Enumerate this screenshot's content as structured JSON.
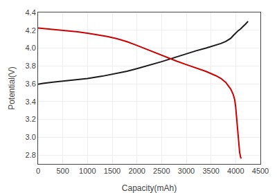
{
  "chart_data": {
    "type": "line",
    "xlabel": "Capacity(mAh)",
    "ylabel": "Potential(V)",
    "xlim": [
      0,
      4500
    ],
    "ylim": [
      2.7,
      4.4
    ],
    "xticks": [
      0,
      500,
      1000,
      1500,
      2000,
      2500,
      3000,
      3500,
      4000,
      4500
    ],
    "yticks": [
      2.8,
      {
        "value": 3.0,
        "label": "3.0"
      },
      3.2,
      3.4,
      3.6,
      3.8,
      {
        "value": 4.0,
        "label": "4.0"
      },
      4.2,
      4.4
    ],
    "grid": true,
    "series": [
      {
        "color": "#1a1a1a",
        "x": [
          0,
          100,
          300,
          500,
          800,
          1000,
          1300,
          1500,
          1800,
          2000,
          2300,
          2500,
          2800,
          3000,
          3200,
          3400,
          3600,
          3700,
          3800,
          3850,
          3900,
          3950,
          4000,
          4050,
          4100,
          4150,
          4200,
          4250
        ],
        "values": [
          3.595,
          3.605,
          3.618,
          3.628,
          3.645,
          3.658,
          3.685,
          3.705,
          3.74,
          3.77,
          3.815,
          3.848,
          3.9,
          3.938,
          3.97,
          4.0,
          4.032,
          4.052,
          4.075,
          4.09,
          4.11,
          4.14,
          4.17,
          4.195,
          4.215,
          4.24,
          4.27,
          4.3
        ]
      },
      {
        "color": "#cc0000",
        "x": [
          0,
          200,
          400,
          600,
          800,
          1000,
          1200,
          1400,
          1600,
          1800,
          2000,
          2200,
          2400,
          2600,
          2800,
          3000,
          3200,
          3400,
          3600,
          3700,
          3800,
          3900,
          3950,
          3980,
          4000,
          4020,
          4040,
          4060,
          4080,
          4100,
          4110
        ],
        "values": [
          4.225,
          4.215,
          4.205,
          4.195,
          4.183,
          4.168,
          4.15,
          4.13,
          4.105,
          4.072,
          4.03,
          3.985,
          3.94,
          3.895,
          3.855,
          3.815,
          3.778,
          3.738,
          3.69,
          3.66,
          3.615,
          3.54,
          3.48,
          3.42,
          3.34,
          3.2,
          3.04,
          2.92,
          2.83,
          2.775,
          2.76
        ]
      }
    ]
  }
}
